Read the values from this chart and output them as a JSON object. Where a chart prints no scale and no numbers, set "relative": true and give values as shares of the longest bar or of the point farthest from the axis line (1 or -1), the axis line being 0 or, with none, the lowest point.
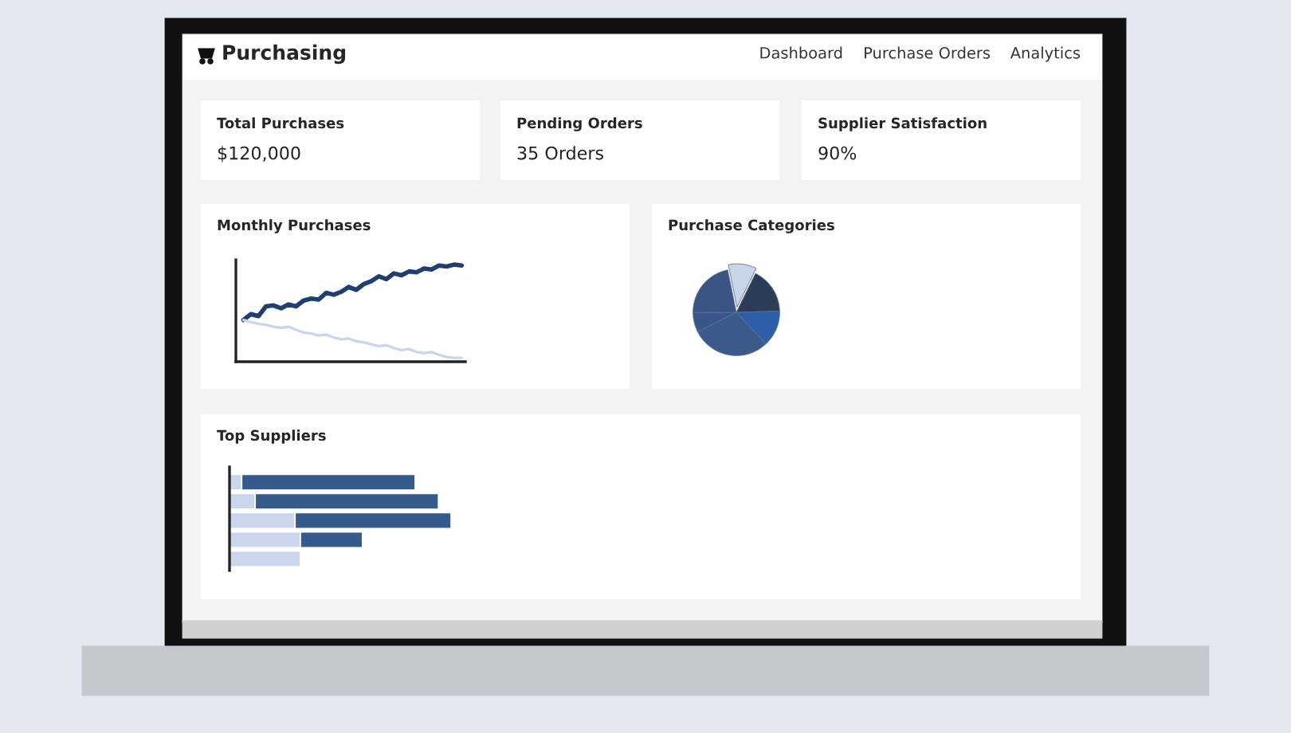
{
  "chart_data": [
    {
      "type": "other",
      "title": "Purchasing",
      "annotations": [
        "Dashboard",
        "Purchase Orders",
        "Analytics"
      ]
    },
    {
      "type": "other",
      "title": "Total Purchases",
      "annotations": [
        "$120,000"
      ]
    },
    {
      "type": "other",
      "title": "Pending Orders",
      "annotations": [
        "35 Orders"
      ]
    },
    {
      "type": "other",
      "title": "Supplier Satisfaction",
      "annotations": [
        "90%"
      ]
    },
    {
      "type": "line",
      "title": "Monthly Purchases",
      "relative": true,
      "categories": [
        null,
        null,
        null,
        null,
        null,
        null,
        null,
        null,
        null,
        null,
        null,
        null,
        null,
        null,
        null,
        null,
        null,
        null,
        null,
        null,
        null,
        null,
        null,
        null,
        null,
        null,
        null,
        null,
        null,
        null
      ],
      "series": [
        {
          "color": "#1f3f73",
          "values": [
            0.43,
            0.49,
            0.47,
            0.57,
            0.58,
            0.55,
            0.59,
            0.57,
            0.63,
            0.65,
            0.64,
            0.71,
            0.69,
            0.72,
            0.77,
            0.74,
            0.8,
            0.83,
            0.88,
            0.85,
            0.91,
            0.89,
            0.93,
            0.92,
            0.96,
            0.95,
            0.99,
            0.98,
            1,
            0.99
          ]
        },
        {
          "color": "#c9d6ec",
          "values": [
            0.43,
            0.41,
            0.39,
            0.38,
            0.36,
            0.35,
            0.36,
            0.33,
            0.3,
            0.29,
            0.27,
            0.28,
            0.25,
            0.23,
            0.24,
            0.21,
            0.2,
            0.18,
            0.16,
            0.17,
            0.14,
            0.12,
            0.13,
            0.1,
            0.09,
            0.1,
            0.07,
            0.05,
            0.04,
            0.04
          ]
        }
      ]
    },
    {
      "type": "pie",
      "title": "Purchase Categories",
      "categories": [
        null,
        null,
        null,
        null,
        null,
        null
      ],
      "values": [
        10.5,
        17.3,
        13.5,
        29.5,
        7.3,
        21.9
      ],
      "colors": [
        "#c8d6ec",
        "#2d3c57",
        "#2f5fa8",
        "#3b5a8a",
        "#37578a",
        "#3a5584"
      ]
    },
    {
      "type": "bar",
      "title": "Top Suppliers",
      "relative": true,
      "orientation": "horizontal",
      "stacked": true,
      "categories": [
        null,
        null,
        null,
        null,
        null
      ],
      "series": [
        {
          "color": "#c9d6ec",
          "values": [
            0.055,
            0.116,
            0.296,
            0.32,
            0.32
          ]
        },
        {
          "color": "#375a8c",
          "values": [
            0.783,
            0.827,
            0.704,
            0.28,
            null
          ]
        }
      ]
    }
  ]
}
